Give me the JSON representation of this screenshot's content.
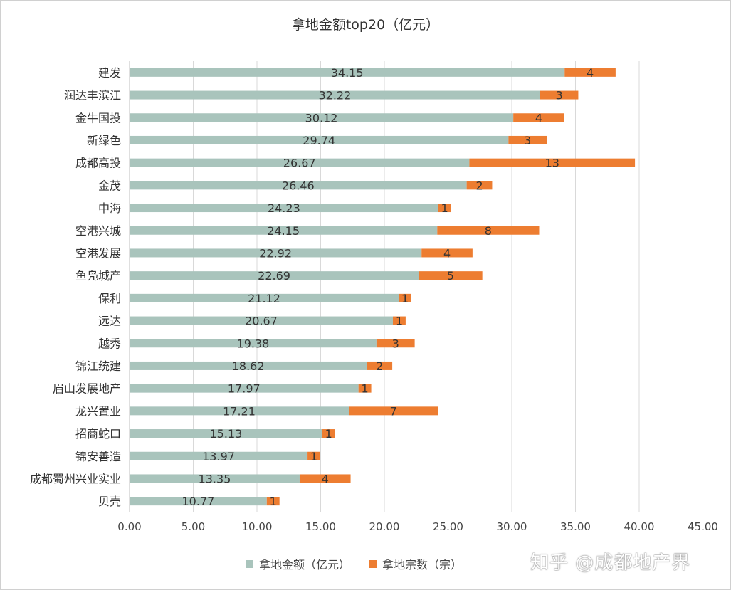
{
  "chart_data": {
    "type": "bar",
    "orientation": "horizontal",
    "stacked": true,
    "title": "拿地金额top20（亿元）",
    "categories": [
      "建发",
      "润达丰滨江",
      "金牛国投",
      "新绿色",
      "成都高投",
      "金茂",
      "中海",
      "空港兴城",
      "空港发展",
      "鱼凫城产",
      "保利",
      "远达",
      "越秀",
      "锦江统建",
      "眉山发展地产",
      "龙兴置业",
      "招商蛇口",
      "锦安善造",
      "成都蜀州兴业实业",
      "贝壳"
    ],
    "series": [
      {
        "name": "拿地金额（亿元）",
        "color": "#a9c4bc",
        "values": [
          34.15,
          32.22,
          30.12,
          29.74,
          26.67,
          26.46,
          24.23,
          24.15,
          22.92,
          22.69,
          21.12,
          20.67,
          19.38,
          18.62,
          17.97,
          17.21,
          15.13,
          13.97,
          13.35,
          10.77
        ],
        "labels": [
          "34.15",
          "32.22",
          "30.12",
          "29.74",
          "26.67",
          "26.46",
          "24.23",
          "24.15",
          "22.92",
          "22.69",
          "21.12",
          "20.67",
          "19.38",
          "18.62",
          "17.97",
          "17.21",
          "15.13",
          "13.97",
          "13.35",
          "10.77"
        ]
      },
      {
        "name": "拿地宗数（宗）",
        "color": "#ed7d31",
        "values": [
          4,
          3,
          4,
          3,
          13,
          2,
          1,
          8,
          4,
          5,
          1,
          1,
          3,
          2,
          1,
          7,
          1,
          1,
          4,
          1
        ],
        "labels": [
          "4",
          "3",
          "4",
          "3",
          "13",
          "2",
          "1",
          "8",
          "4",
          "5",
          "1",
          "1",
          "3",
          "2",
          "1",
          "7",
          "1",
          "1",
          "4",
          "1"
        ]
      }
    ],
    "xlim": [
      0,
      45
    ],
    "xticks": [
      "0.00",
      "5.00",
      "10.00",
      "15.00",
      "20.00",
      "25.00",
      "30.00",
      "35.00",
      "40.00",
      "45.00"
    ],
    "grid": true,
    "legend": "bottom"
  },
  "watermark": "知乎 @成都地产界"
}
